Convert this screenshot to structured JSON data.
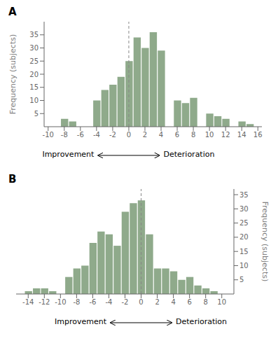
{
  "chart_data": [
    {
      "type": "bar",
      "title": "A",
      "x": [
        -9,
        -8,
        -7,
        -6,
        -5,
        -4,
        -3,
        -2,
        -1,
        0,
        1,
        2,
        3,
        4,
        5,
        6,
        7,
        8,
        9,
        10,
        11,
        12,
        13,
        14,
        15
      ],
      "values": [
        0,
        3,
        2,
        0,
        0,
        10,
        14,
        16,
        19,
        25,
        34,
        30,
        36,
        29,
        0,
        10,
        9,
        11,
        0,
        5,
        4,
        3,
        0,
        2,
        1
      ],
      "xlim": [
        -10.5,
        16.5
      ],
      "xticks": [
        -10,
        -8,
        -6,
        -4,
        -2,
        0,
        2,
        4,
        6,
        8,
        10,
        12,
        14,
        16
      ],
      "ylim": [
        0,
        40
      ],
      "yticks": [
        5,
        10,
        15,
        20,
        25,
        30,
        35
      ],
      "y_label": "Frequency (subjects)",
      "color": "#8faa8b",
      "annotations": [
        "Improvement",
        "Deterioration"
      ],
      "reference_lines": [
        {
          "x": 0,
          "color": "#888888",
          "line_style": "dashed"
        }
      ]
    },
    {
      "type": "bar",
      "title": "B",
      "x": [
        -14,
        -13,
        -12,
        -11,
        -10,
        -9,
        -8,
        -7,
        -6,
        -5,
        -4,
        -3,
        -2,
        -1,
        0,
        1,
        2,
        3,
        4,
        5,
        6,
        7,
        8,
        9,
        10
      ],
      "values": [
        1,
        2,
        2,
        1,
        0,
        6,
        9,
        10,
        18,
        22,
        21,
        17,
        29,
        32,
        33,
        21,
        9,
        9,
        8,
        5,
        6,
        3,
        2,
        1,
        0
      ],
      "xlim": [
        -15.5,
        11.5
      ],
      "xticks": [
        -14,
        -12,
        -10,
        -8,
        -6,
        -4,
        -2,
        0,
        2,
        4,
        6,
        8,
        10
      ],
      "ylim": [
        0,
        37
      ],
      "yticks": [
        5,
        10,
        15,
        20,
        25,
        30,
        35
      ],
      "y_label": "Frequency (subjects)",
      "color": "#8faa8b",
      "annotations": [
        "Improvement",
        "Deterioration"
      ],
      "reference_lines": [
        {
          "x": 0,
          "color": "#888888",
          "line_style": "dashed"
        }
      ]
    }
  ]
}
